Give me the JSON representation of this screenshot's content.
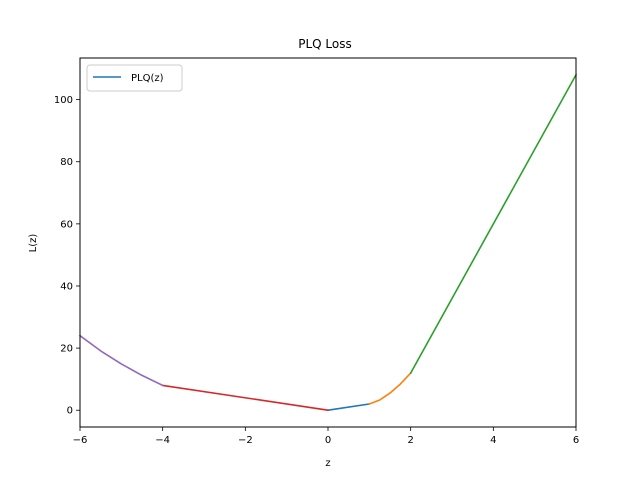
{
  "chart_data": {
    "type": "line",
    "title": "PLQ Loss",
    "xlabel": "z",
    "ylabel": "L(z)",
    "xlim": [
      -6,
      6
    ],
    "ylim": [
      -5.4,
      113.4
    ],
    "xticks": [
      -6,
      -4,
      -2,
      0,
      2,
      4,
      6
    ],
    "xtick_labels": [
      "−6",
      "−4",
      "−2",
      "0",
      "2",
      "4",
      "6"
    ],
    "yticks": [
      0,
      20,
      40,
      60,
      80,
      100
    ],
    "ytick_labels": [
      "0",
      "20",
      "40",
      "60",
      "80",
      "100"
    ],
    "grid": false,
    "legend": {
      "placement": "upper-left",
      "entries": [
        {
          "label": "PLQ(z)",
          "color": "#1f77b4"
        }
      ]
    },
    "series": [
      {
        "color": "#1f77b4",
        "x": [
          0,
          1
        ],
        "y": [
          0,
          2
        ]
      },
      {
        "color": "#ff7f0e",
        "x": [
          1,
          1.25,
          1.5,
          1.75,
          2
        ],
        "y": [
          2,
          3.3,
          5.5,
          8.4,
          12
        ]
      },
      {
        "color": "#2ca02c",
        "x": [
          2,
          6
        ],
        "y": [
          12,
          108
        ]
      },
      {
        "color": "#d62728",
        "x": [
          -4,
          0
        ],
        "y": [
          8,
          0
        ]
      },
      {
        "color": "#9467bd",
        "x": [
          -6,
          -5.5,
          -5,
          -4.5,
          -4
        ],
        "y": [
          24,
          19.1,
          14.9,
          11.2,
          8
        ]
      }
    ]
  }
}
